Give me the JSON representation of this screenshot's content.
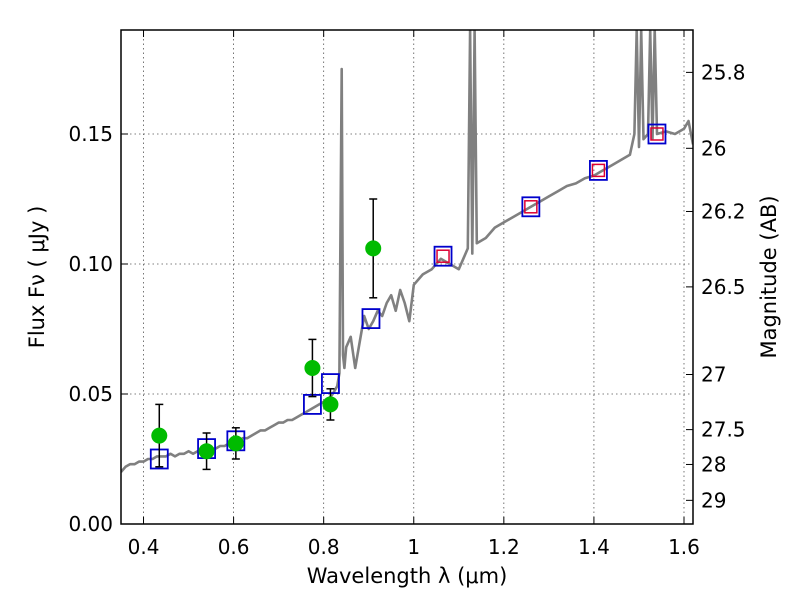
{
  "chart_data": {
    "type": "scatter",
    "xlabel": "Wavelength  λ (μm)",
    "ylabel": "Flux  Fν  ( μJy )",
    "y2label": "Magnitude (AB)",
    "xlim": [
      0.35,
      1.62
    ],
    "ylim": [
      0.0,
      0.19
    ],
    "grid": true,
    "xticks": [
      {
        "v": 0.4,
        "label": "0.4"
      },
      {
        "v": 0.6,
        "label": "0.6"
      },
      {
        "v": 0.8,
        "label": "0.8"
      },
      {
        "v": 1.0,
        "label": "1"
      },
      {
        "v": 1.2,
        "label": "1.2"
      },
      {
        "v": 1.4,
        "label": "1.4"
      },
      {
        "v": 1.6,
        "label": "1.6"
      }
    ],
    "yticks": [
      {
        "v": 0.0,
        "label": "0.00"
      },
      {
        "v": 0.05,
        "label": "0.05"
      },
      {
        "v": 0.1,
        "label": "0.10"
      },
      {
        "v": 0.15,
        "label": "0.15"
      }
    ],
    "y2ticks": [
      {
        "label": "25.8",
        "flux": 0.1737
      },
      {
        "label": "26",
        "flux": 0.1445
      },
      {
        "label": "26.2",
        "flux": 0.1202
      },
      {
        "label": "26.5",
        "flux": 0.0912
      },
      {
        "label": "27",
        "flux": 0.0575
      },
      {
        "label": "27.5",
        "flux": 0.0363
      },
      {
        "label": "28",
        "flux": 0.0229
      },
      {
        "label": "29",
        "flux": 0.0091
      }
    ],
    "spectrum": {
      "x": [
        0.35,
        0.36,
        0.37,
        0.38,
        0.39,
        0.4,
        0.41,
        0.42,
        0.43,
        0.44,
        0.45,
        0.46,
        0.47,
        0.48,
        0.49,
        0.5,
        0.51,
        0.52,
        0.53,
        0.54,
        0.55,
        0.56,
        0.57,
        0.58,
        0.59,
        0.6,
        0.61,
        0.62,
        0.63,
        0.64,
        0.65,
        0.66,
        0.67,
        0.68,
        0.69,
        0.7,
        0.71,
        0.72,
        0.73,
        0.74,
        0.75,
        0.76,
        0.77,
        0.78,
        0.79,
        0.8,
        0.81,
        0.82,
        0.83,
        0.835,
        0.84,
        0.843,
        0.846,
        0.85,
        0.86,
        0.87,
        0.88,
        0.89,
        0.9,
        0.91,
        0.92,
        0.93,
        0.94,
        0.95,
        0.96,
        0.97,
        0.98,
        0.99,
        1.0,
        1.02,
        1.04,
        1.06,
        1.08,
        1.1,
        1.11,
        1.12,
        1.125,
        1.13,
        1.135,
        1.14,
        1.16,
        1.18,
        1.2,
        1.22,
        1.24,
        1.26,
        1.28,
        1.3,
        1.32,
        1.34,
        1.36,
        1.38,
        1.4,
        1.42,
        1.44,
        1.46,
        1.48,
        1.49,
        1.495,
        1.5,
        1.505,
        1.51,
        1.52,
        1.525,
        1.53,
        1.535,
        1.54,
        1.56,
        1.58,
        1.6,
        1.61,
        1.62
      ],
      "y": [
        0.02,
        0.022,
        0.023,
        0.023,
        0.024,
        0.024,
        0.025,
        0.025,
        0.026,
        0.026,
        0.026,
        0.027,
        0.026,
        0.027,
        0.027,
        0.028,
        0.027,
        0.028,
        0.027,
        0.028,
        0.029,
        0.029,
        0.03,
        0.03,
        0.031,
        0.032,
        0.031,
        0.033,
        0.033,
        0.034,
        0.035,
        0.036,
        0.036,
        0.037,
        0.038,
        0.039,
        0.039,
        0.04,
        0.04,
        0.041,
        0.042,
        0.043,
        0.044,
        0.045,
        0.046,
        0.047,
        0.048,
        0.05,
        0.053,
        0.058,
        0.175,
        0.065,
        0.06,
        0.068,
        0.072,
        0.06,
        0.07,
        0.08,
        0.075,
        0.078,
        0.082,
        0.08,
        0.085,
        0.088,
        0.082,
        0.09,
        0.085,
        0.078,
        0.092,
        0.096,
        0.098,
        0.102,
        0.1,
        0.098,
        0.102,
        0.106,
        0.19,
        0.104,
        0.19,
        0.108,
        0.11,
        0.114,
        0.116,
        0.118,
        0.12,
        0.122,
        0.124,
        0.126,
        0.128,
        0.13,
        0.131,
        0.133,
        0.134,
        0.136,
        0.138,
        0.14,
        0.142,
        0.15,
        0.19,
        0.145,
        0.19,
        0.148,
        0.15,
        0.19,
        0.148,
        0.19,
        0.15,
        0.151,
        0.15,
        0.152,
        0.155,
        0.146
      ]
    },
    "observed": {
      "x": [
        0.435,
        0.54,
        0.605,
        0.775,
        0.815,
        0.91
      ],
      "y": [
        0.034,
        0.028,
        0.031,
        0.06,
        0.046,
        0.106
      ],
      "err": [
        0.012,
        0.007,
        0.006,
        0.011,
        0.006,
        0.019
      ]
    },
    "model_boxes": {
      "x": [
        0.435,
        0.54,
        0.605,
        0.775,
        0.815,
        0.905,
        1.065,
        1.26,
        1.41,
        1.54
      ],
      "y": [
        0.025,
        0.029,
        0.032,
        0.046,
        0.054,
        0.079,
        0.103,
        0.122,
        0.136,
        0.15
      ]
    },
    "red_boxes": {
      "x": [
        1.065,
        1.26,
        1.41,
        1.54
      ],
      "y": [
        0.103,
        0.122,
        0.136,
        0.15
      ]
    },
    "colors": {
      "spectrum": "#808080",
      "observed": "#00bb00",
      "model_boxes": "#0000cc",
      "red_boxes": "#dd0033",
      "errorbar": "#000000"
    }
  }
}
